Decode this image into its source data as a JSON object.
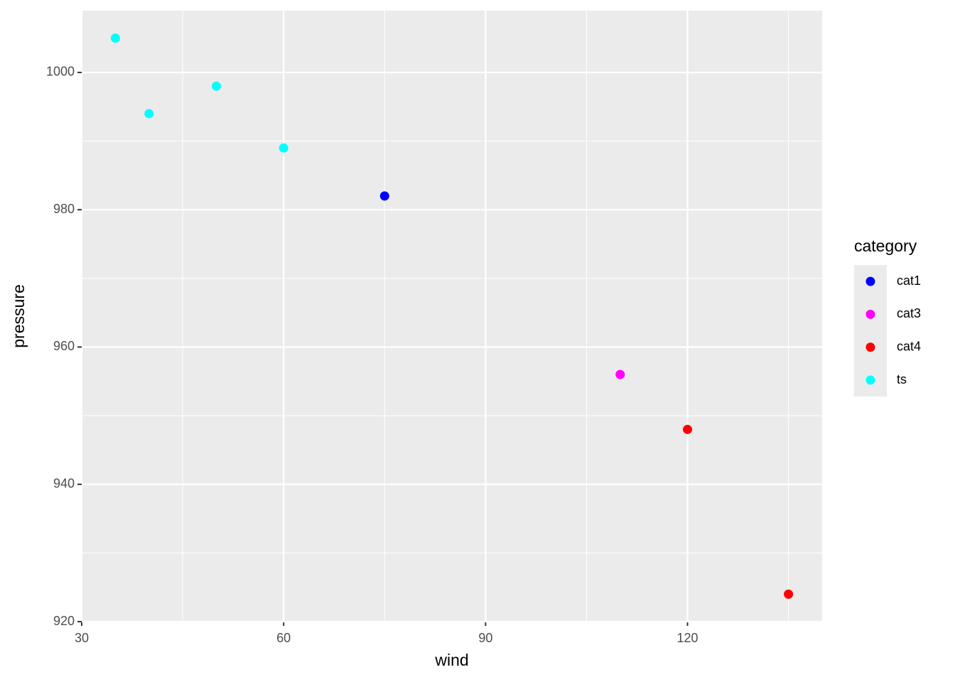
{
  "chart_data": {
    "type": "scatter",
    "x_label": "wind",
    "y_label": "pressure",
    "legend_title": "category",
    "xlim": [
      30,
      140
    ],
    "ylim": [
      920,
      1009
    ],
    "xticks": [
      30,
      60,
      90,
      120
    ],
    "yticks": [
      920,
      940,
      960,
      980,
      1000
    ],
    "x_minor_ticks": [
      45,
      75,
      105,
      135
    ],
    "y_minor_ticks": [
      930,
      950,
      970,
      990
    ],
    "grid": true,
    "legend_position": "right",
    "series": [
      {
        "name": "cat1",
        "color": "#0000ff",
        "x": [
          75
        ],
        "values": [
          982
        ]
      },
      {
        "name": "cat3",
        "color": "#ff00ff",
        "x": [
          110
        ],
        "values": [
          956
        ]
      },
      {
        "name": "cat4",
        "color": "#ff0000",
        "x": [
          120,
          135
        ],
        "values": [
          948,
          924
        ]
      },
      {
        "name": "ts",
        "color": "#00ffff",
        "x": [
          35,
          40,
          50,
          60
        ],
        "values": [
          1005,
          994,
          998,
          989
        ]
      }
    ]
  }
}
